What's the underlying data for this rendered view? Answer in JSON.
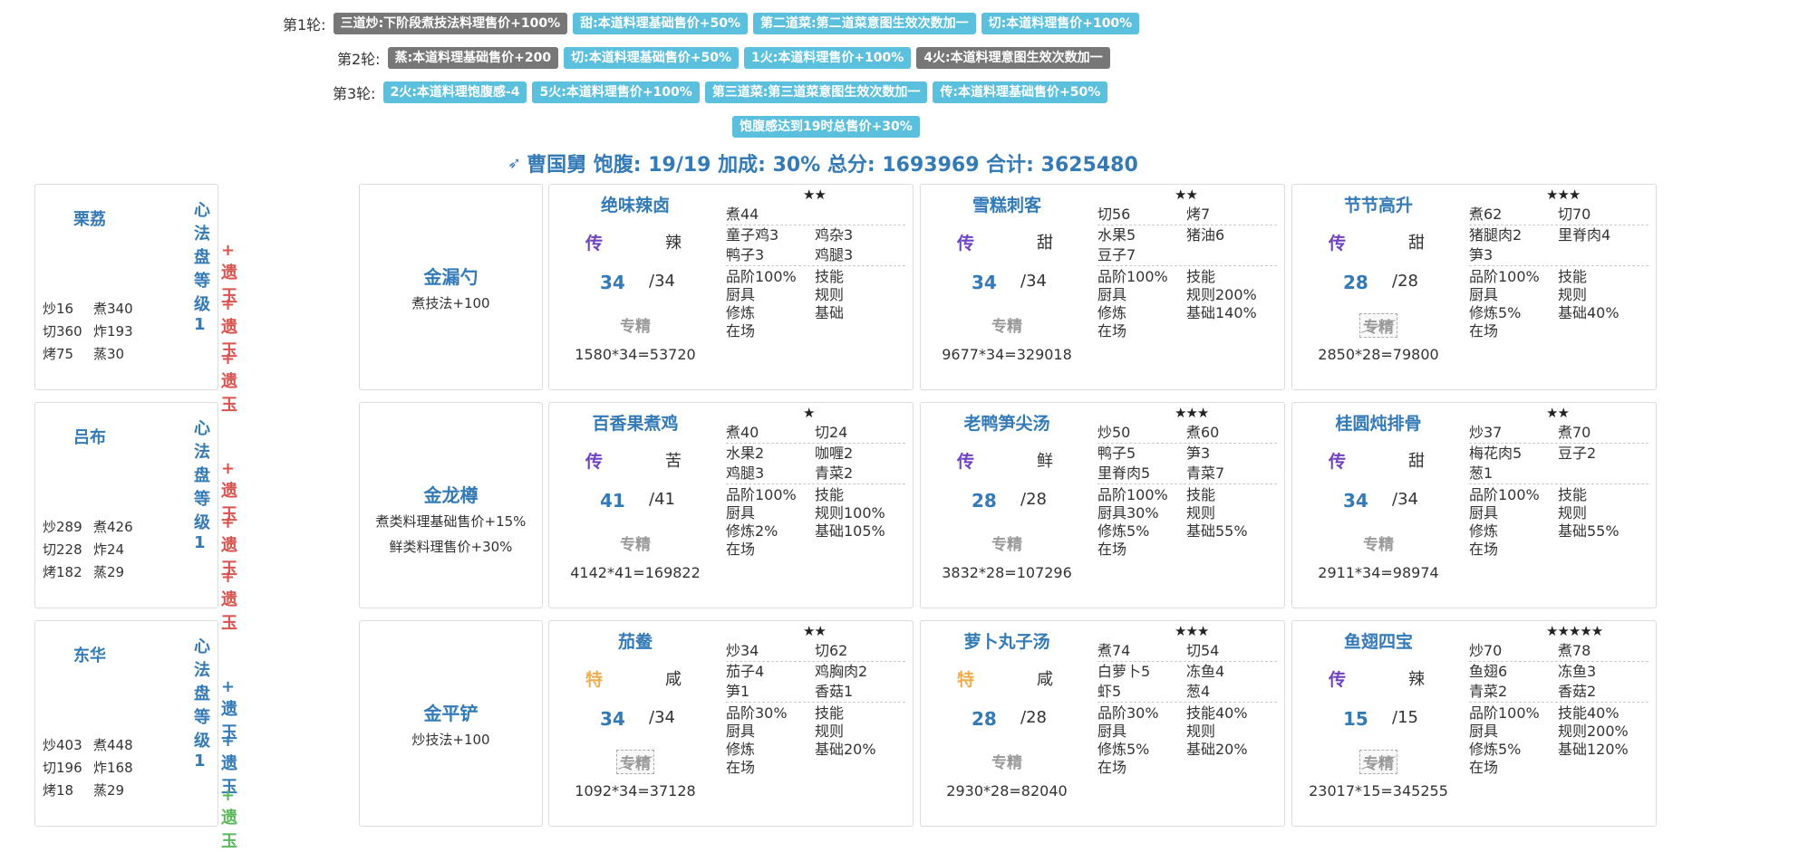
{
  "rounds": [
    {
      "label": "第1轮:",
      "tags": [
        {
          "text": "三道炒:下阶段煮技法料理售价+100%",
          "style": "dark"
        },
        {
          "text": "甜:本道料理基础售价+50%",
          "style": "blue"
        },
        {
          "text": "第二道菜:第二道菜意图生效次数加一",
          "style": "blue"
        },
        {
          "text": "切:本道料理售价+100%",
          "style": "blue"
        }
      ]
    },
    {
      "label": "第2轮:",
      "tags": [
        {
          "text": "蒸:本道料理基础售价+200",
          "style": "dark"
        },
        {
          "text": "切:本道料理基础售价+50%",
          "style": "blue"
        },
        {
          "text": "1火:本道料理售价+100%",
          "style": "blue"
        },
        {
          "text": "4火:本道料理意图生效次数加一",
          "style": "dark"
        }
      ]
    },
    {
      "label": "第3轮:",
      "tags": [
        {
          "text": "2火:本道料理饱腹感-4",
          "style": "blue"
        },
        {
          "text": "5火:本道料理售价+100%",
          "style": "blue"
        },
        {
          "text": "第三道菜:第三道菜意图生效次数加一",
          "style": "blue"
        },
        {
          "text": "传:本道料理基础售价+50%",
          "style": "blue"
        }
      ]
    },
    {
      "label": "",
      "tags": [
        {
          "text": "饱腹感达到19时总售价+30%",
          "style": "blue"
        }
      ]
    }
  ],
  "summary": {
    "icon": "arrow-icon",
    "text": "曹国舅 饱腹: 19/19 加成: 30% 总分: 1693969 合计: 3625480"
  },
  "rows": [
    {
      "chef": {
        "name": "栗荔",
        "level": "心法盘等级 1",
        "jades": [
          {
            "text": "+ 遗玉",
            "color": "red"
          },
          {
            "text": "+ 遗玉",
            "color": "red"
          },
          {
            "text": "+ 遗玉",
            "color": "red"
          }
        ],
        "skills": [
          "炒16",
          "煮340",
          "切360",
          "炸193",
          "烤75",
          "蒸30"
        ]
      },
      "equip": {
        "name": "金漏勺",
        "effects": [
          "煮技法+100"
        ]
      },
      "dishes": [
        {
          "name": "绝味辣卤",
          "stars": "★★",
          "rarity": "传",
          "rarity_type": "chuan",
          "flavor": "辣",
          "qty": "34",
          "qty_max": "/34",
          "zhuanjing": "专精",
          "zhuanjing_strike": false,
          "score": "1580*34=53720",
          "ingredients": [
            [
              "煮44",
              ""
            ],
            [
              "童子鸡3",
              "鸡杂3"
            ],
            [
              "鸭子3",
              "鸡腿3"
            ]
          ],
          "stats": [
            [
              "品阶100%",
              "技能"
            ],
            [
              "厨具",
              "规则"
            ],
            [
              "修炼",
              "基础"
            ],
            [
              "在场",
              ""
            ]
          ]
        },
        {
          "name": "雪糕刺客",
          "stars": "★★",
          "rarity": "传",
          "rarity_type": "chuan",
          "flavor": "甜",
          "qty": "34",
          "qty_max": "/34",
          "zhuanjing": "专精",
          "zhuanjing_strike": false,
          "score": "9677*34=329018",
          "ingredients": [
            [
              "切56",
              "烤7"
            ],
            [
              "水果5",
              "猪油6"
            ],
            [
              "豆子7",
              ""
            ]
          ],
          "stats": [
            [
              "品阶100%",
              "技能"
            ],
            [
              "厨具",
              "规则200%"
            ],
            [
              "修炼",
              "基础140%"
            ],
            [
              "在场",
              ""
            ]
          ]
        },
        {
          "name": "节节高升",
          "stars": "★★★",
          "rarity": "传",
          "rarity_type": "chuan",
          "flavor": "甜",
          "qty": "28",
          "qty_max": "/28",
          "zhuanjing": "专精",
          "zhuanjing_strike": true,
          "score": "2850*28=79800",
          "ingredients": [
            [
              "煮62",
              "切70"
            ],
            [
              "猪腿肉2",
              "里脊肉4"
            ],
            [
              "笋3",
              ""
            ]
          ],
          "stats": [
            [
              "品阶100%",
              "技能"
            ],
            [
              "厨具",
              "规则"
            ],
            [
              "修炼5%",
              "基础40%"
            ],
            [
              "在场",
              ""
            ]
          ]
        }
      ]
    },
    {
      "chef": {
        "name": "吕布",
        "level": "心法盘等级 1",
        "jades": [
          {
            "text": "+ 遗玉",
            "color": "red"
          },
          {
            "text": "+ 遗玉",
            "color": "red"
          },
          {
            "text": "+ 遗玉",
            "color": "red"
          }
        ],
        "skills": [
          "炒289",
          "煮426",
          "切228",
          "炸24",
          "烤182",
          "蒸29"
        ]
      },
      "equip": {
        "name": "金龙樽",
        "effects": [
          "煮类料理基础售价+15%",
          "鲜类料理售价+30%"
        ]
      },
      "dishes": [
        {
          "name": "百香果煮鸡",
          "stars": "★",
          "rarity": "传",
          "rarity_type": "chuan",
          "flavor": "苦",
          "qty": "41",
          "qty_max": "/41",
          "zhuanjing": "专精",
          "zhuanjing_strike": false,
          "score": "4142*41=169822",
          "ingredients": [
            [
              "煮40",
              "切24"
            ],
            [
              "水果2",
              "咖喱2"
            ],
            [
              "鸡腿3",
              "青菜2"
            ]
          ],
          "stats": [
            [
              "品阶100%",
              "技能"
            ],
            [
              "厨具",
              "规则100%"
            ],
            [
              "修炼2%",
              "基础105%"
            ],
            [
              "在场",
              ""
            ]
          ]
        },
        {
          "name": "老鸭笋尖汤",
          "stars": "★★★",
          "rarity": "传",
          "rarity_type": "chuan",
          "flavor": "鲜",
          "qty": "28",
          "qty_max": "/28",
          "zhuanjing": "专精",
          "zhuanjing_strike": false,
          "score": "3832*28=107296",
          "ingredients": [
            [
              "炒50",
              "煮60"
            ],
            [
              "鸭子5",
              "笋3"
            ],
            [
              "里脊肉5",
              "青菜7"
            ]
          ],
          "stats": [
            [
              "品阶100%",
              "技能"
            ],
            [
              "厨具30%",
              "规则"
            ],
            [
              "修炼5%",
              "基础55%"
            ],
            [
              "在场",
              ""
            ]
          ]
        },
        {
          "name": "桂圆炖排骨",
          "stars": "★★",
          "rarity": "传",
          "rarity_type": "chuan",
          "flavor": "甜",
          "qty": "34",
          "qty_max": "/34",
          "zhuanjing": "专精",
          "zhuanjing_strike": false,
          "score": "2911*34=98974",
          "ingredients": [
            [
              "炒37",
              "煮70"
            ],
            [
              "梅花肉5",
              "豆子2"
            ],
            [
              "葱1",
              ""
            ]
          ],
          "stats": [
            [
              "品阶100%",
              "技能"
            ],
            [
              "厨具",
              "规则"
            ],
            [
              "修炼",
              "基础55%"
            ],
            [
              "在场",
              ""
            ]
          ]
        }
      ]
    },
    {
      "chef": {
        "name": "东华",
        "level": "心法盘等级 1",
        "jades": [
          {
            "text": "+ 遗玉",
            "color": "blue"
          },
          {
            "text": "+ 遗玉",
            "color": "blue"
          },
          {
            "text": "+ 遗玉",
            "color": "green"
          }
        ],
        "skills": [
          "炒403",
          "煮448",
          "切196",
          "炸168",
          "烤18",
          "蒸29"
        ]
      },
      "equip": {
        "name": "金平铲",
        "effects": [
          "炒技法+100"
        ]
      },
      "dishes": [
        {
          "name": "茄鲞",
          "stars": "★★",
          "rarity": "特",
          "rarity_type": "te",
          "flavor": "咸",
          "qty": "34",
          "qty_max": "/34",
          "zhuanjing": "专精",
          "zhuanjing_strike": true,
          "score": "1092*34=37128",
          "ingredients": [
            [
              "炒34",
              "切62"
            ],
            [
              "茄子4",
              "鸡胸肉2"
            ],
            [
              "笋1",
              "香菇1"
            ]
          ],
          "stats": [
            [
              "品阶30%",
              "技能"
            ],
            [
              "厨具",
              "规则"
            ],
            [
              "修炼",
              "基础20%"
            ],
            [
              "在场",
              ""
            ]
          ]
        },
        {
          "name": "萝卜丸子汤",
          "stars": "★★★",
          "rarity": "特",
          "rarity_type": "te",
          "flavor": "咸",
          "qty": "28",
          "qty_max": "/28",
          "zhuanjing": "专精",
          "zhuanjing_strike": false,
          "score": "2930*28=82040",
          "ingredients": [
            [
              "煮74",
              "切54"
            ],
            [
              "白萝卜5",
              "冻鱼4"
            ],
            [
              "虾5",
              "葱4"
            ]
          ],
          "stats": [
            [
              "品阶30%",
              "技能40%"
            ],
            [
              "厨具",
              "规则"
            ],
            [
              "修炼5%",
              "基础20%"
            ],
            [
              "在场",
              ""
            ]
          ]
        },
        {
          "name": "鱼翅四宝",
          "stars": "★★★★★",
          "rarity": "传",
          "rarity_type": "chuan",
          "flavor": "辣",
          "qty": "15",
          "qty_max": "/15",
          "zhuanjing": "专精",
          "zhuanjing_strike": true,
          "score": "23017*15=345255",
          "ingredients": [
            [
              "炒70",
              "煮78"
            ],
            [
              "鱼翅6",
              "冻鱼3"
            ],
            [
              "青菜2",
              "香菇2"
            ]
          ],
          "stats": [
            [
              "品阶100%",
              "技能40%"
            ],
            [
              "厨具",
              "规则200%"
            ],
            [
              "修炼5%",
              "基础120%"
            ],
            [
              "在场",
              ""
            ]
          ]
        }
      ]
    }
  ]
}
